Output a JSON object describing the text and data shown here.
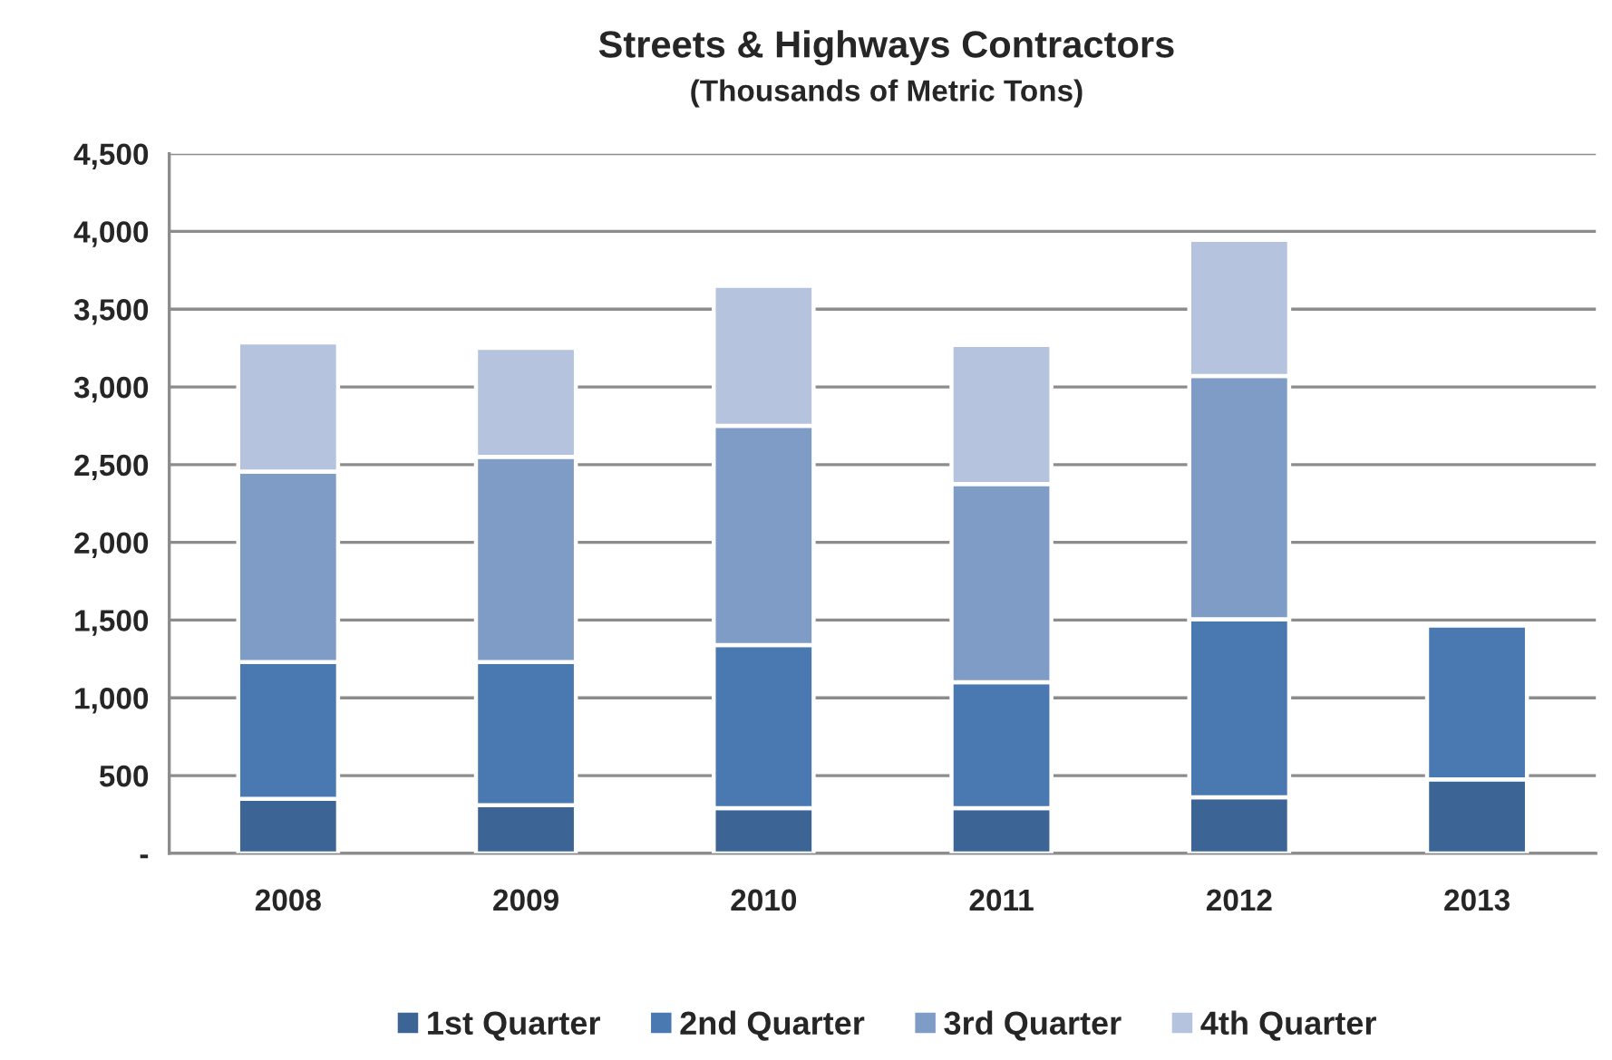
{
  "chart_data": {
    "type": "bar",
    "title": "Streets & Highways Contractors",
    "subtitle": "(Thousands of Metric Tons)",
    "categories": [
      "2008",
      "2009",
      "2010",
      "2011",
      "2012",
      "2013"
    ],
    "stacked": true,
    "series": [
      {
        "name": "1st Quarter",
        "color": "#3c6494",
        "values": [
          350,
          310,
          290,
          290,
          360,
          475
        ]
      },
      {
        "name": "2nd Quarter",
        "color": "#4a78b0",
        "values": [
          880,
          920,
          1050,
          810,
          1145,
          990
        ]
      },
      {
        "name": "3rd Quarter",
        "color": "#7f9cc7",
        "values": [
          1225,
          1320,
          1410,
          1275,
          1565,
          null
        ]
      },
      {
        "name": "4th Quarter",
        "color": "#b5c3de",
        "values": [
          830,
          700,
          900,
          895,
          875,
          null
        ]
      }
    ],
    "ylim": [
      0,
      4500
    ],
    "yticks": [
      {
        "value": 0,
        "label": "-"
      },
      {
        "value": 500,
        "label": "500"
      },
      {
        "value": 1000,
        "label": "1,000"
      },
      {
        "value": 1500,
        "label": "1,500"
      },
      {
        "value": 2000,
        "label": "2,000"
      },
      {
        "value": 2500,
        "label": "2,500"
      },
      {
        "value": 3000,
        "label": "3,000"
      },
      {
        "value": 3500,
        "label": "3,500"
      },
      {
        "value": 4000,
        "label": "4,000"
      },
      {
        "value": 4500,
        "label": "4,500"
      }
    ],
    "grid": "y",
    "legend": "bottom"
  }
}
